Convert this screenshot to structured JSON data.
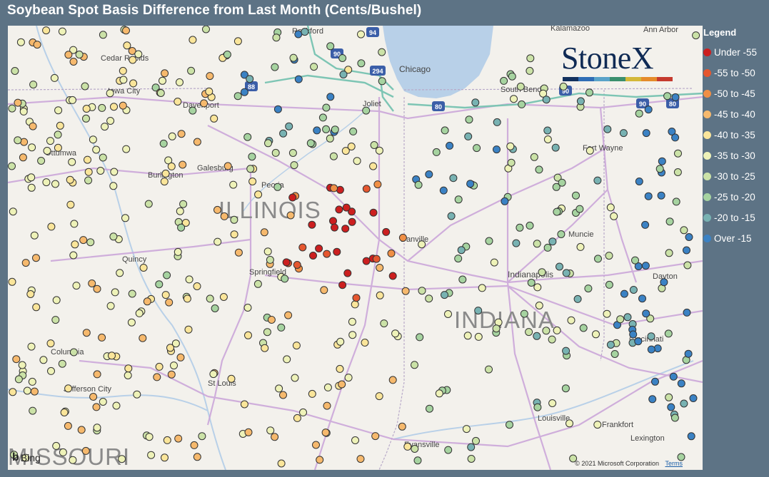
{
  "title": "Soybean Spot Basis Difference from Last Month (Cents/Bushel)",
  "legend": {
    "title": "Legend",
    "items": [
      {
        "label": "Under -55",
        "color": "#cc1f1f"
      },
      {
        "label": "-55 to -50",
        "color": "#e5572f"
      },
      {
        "label": "-50 to -45",
        "color": "#f08f45"
      },
      {
        "label": "-45 to -40",
        "color": "#f6b96d"
      },
      {
        "label": "-40 to -35",
        "color": "#fae59a"
      },
      {
        "label": "-35 to -30",
        "color": "#eef2b8"
      },
      {
        "label": "-30 to -25",
        "color": "#cbe2a7"
      },
      {
        "label": "-25 to -20",
        "color": "#a6d3a0"
      },
      {
        "label": "-20 to -15",
        "color": "#78b2b2"
      },
      {
        "label": "Over -15",
        "color": "#3b82c4"
      }
    ]
  },
  "logo": {
    "text": "StoneX",
    "bar_colors": [
      "#12315e",
      "#2f6db5",
      "#5aa3c9",
      "#3a8f6d",
      "#d4b838",
      "#e58b2a",
      "#c53a2e"
    ]
  },
  "map": {
    "states": [
      "ILLINOIS",
      "INDIANA",
      "MISSOURI"
    ],
    "cities": [
      "Rockford",
      "Kalamazoo",
      "Ann Arbor",
      "Cedar Rapids",
      "Chicago",
      "Iowa City",
      "South Bend",
      "Davenport",
      "Joliet",
      "Ottumwa",
      "Burlington",
      "Galesburg",
      "Peoria",
      "Fort Wayne",
      "Quincy",
      "Danville",
      "Muncie",
      "Springfield",
      "Indianapolis",
      "Dayton",
      "Columbia",
      "Cincinnati",
      "St Louis",
      "Jefferson City",
      "Louisville",
      "Frankfort",
      "Evansville",
      "Lexington"
    ],
    "highway_shields": [
      "94",
      "90",
      "294",
      "88",
      "80",
      "90",
      "90",
      "80"
    ],
    "copyright": "© 2021 Microsoft Corporation",
    "terms": "Terms",
    "provider": "Bing"
  }
}
